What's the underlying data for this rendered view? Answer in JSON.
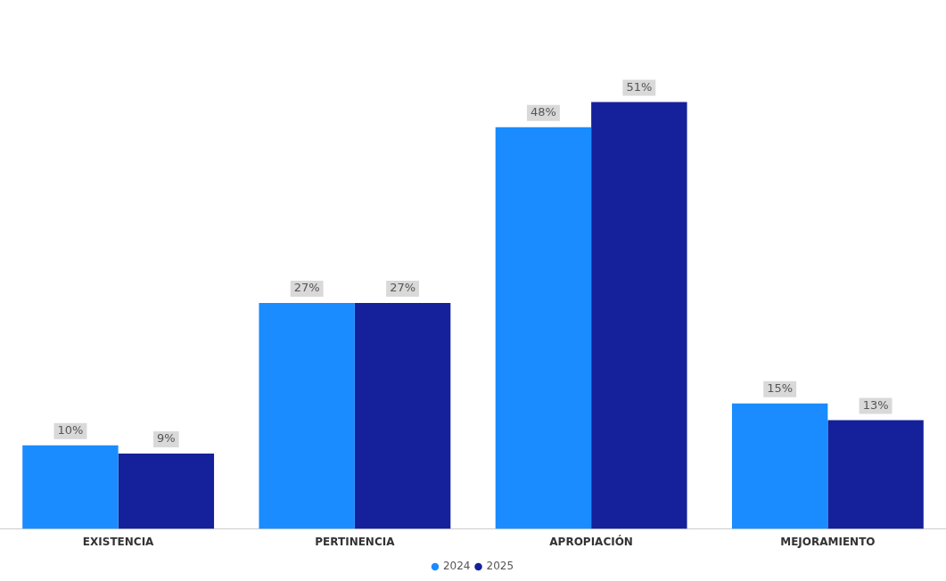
{
  "chart_data": {
    "type": "bar",
    "categories": [
      "EXISTENCIA",
      "PERTINENCIA",
      "APROPIACIÓN",
      "MEJORAMIENTO"
    ],
    "series": [
      {
        "name": "2024",
        "color": "#1a8cff",
        "values": [
          10,
          27,
          48,
          15
        ],
        "value_labels": [
          "10%",
          "27%",
          "48%",
          "15%"
        ]
      },
      {
        "name": "2025",
        "color": "#14219a",
        "values": [
          9,
          27,
          51,
          13
        ],
        "value_labels": [
          "9%",
          "27%",
          "51%",
          "13%"
        ]
      }
    ],
    "grid": false,
    "legend": "bottom"
  }
}
